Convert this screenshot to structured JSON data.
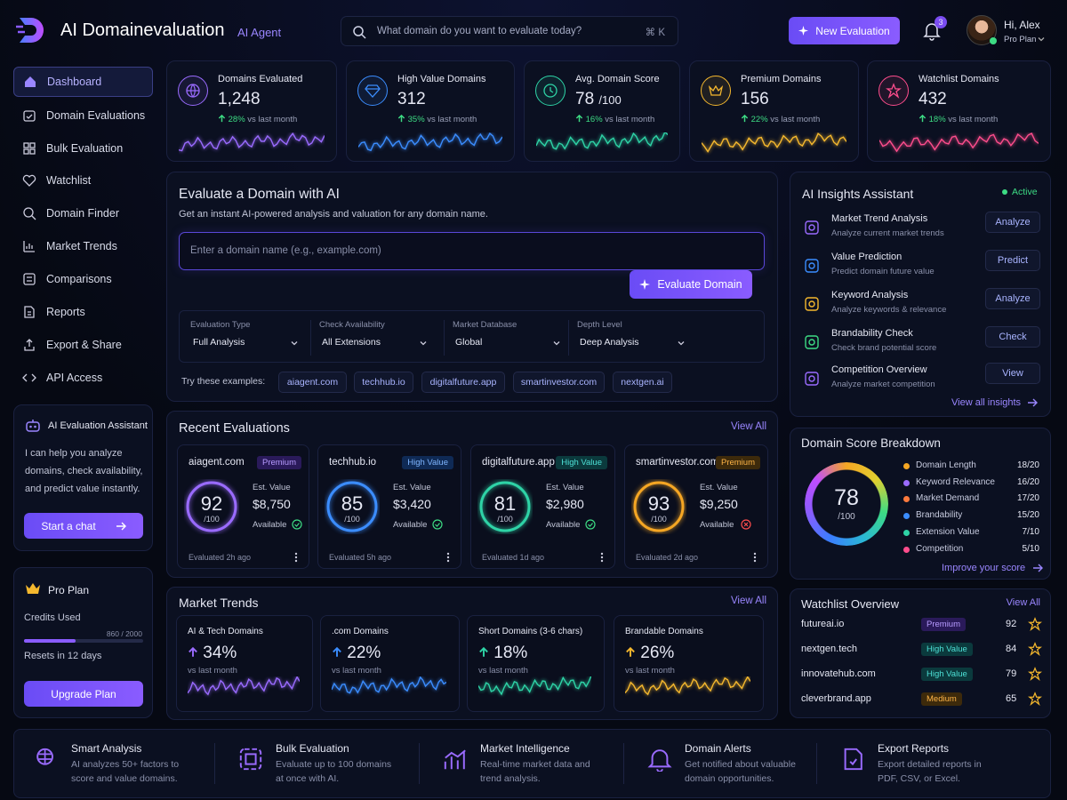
{
  "header": {
    "brand": "AI Domainevaluation",
    "tag": "AI Agent",
    "search_placeholder": "What domain do you want to evaluate today?",
    "shortcut": "⌘ K",
    "new_button": "New Evaluation",
    "notifications": "3",
    "greeting": "Hi, Alex",
    "plan": "Pro Plan"
  },
  "sidebar": {
    "nav": [
      "Dashboard",
      "Domain Evaluations",
      "Bulk Evaluation",
      "Watchlist",
      "Domain Finder",
      "Market Trends",
      "Comparisons",
      "Reports",
      "Export & Share",
      "API Access"
    ],
    "assistant": {
      "title": "AI Evaluation Assistant",
      "text": "I can help you analyze domains, check availability, and predict value instantly.",
      "button": "Start a chat"
    },
    "plan": {
      "title": "Pro Plan",
      "credits_label": "Credits Used",
      "credits": "860 / 2000",
      "resets": "Resets in 12 days",
      "button": "Upgrade Plan"
    }
  },
  "stats": [
    {
      "label": "Domains Evaluated",
      "value": "1,248",
      "change": "28%",
      "note": "vs last month"
    },
    {
      "label": "High Value Domains",
      "value": "312",
      "change": "35%",
      "note": "vs last month"
    },
    {
      "label": "Avg. Domain Score",
      "value": "78",
      "suffix": "/100",
      "change": "16%",
      "note": "vs last month"
    },
    {
      "label": "Premium Domains",
      "value": "156",
      "change": "22%",
      "note": "vs last month"
    },
    {
      "label": "Watchlist Domains",
      "value": "432",
      "change": "18%",
      "note": "vs last month"
    }
  ],
  "evaluate": {
    "title": "Evaluate a Domain with AI",
    "subtitle": "Get an instant AI-powered analysis and valuation for any domain name.",
    "input_placeholder": "Enter a domain name (e.g., example.com)",
    "button": "Evaluate Domain",
    "filters": [
      {
        "label": "Evaluation Type",
        "value": "Full Analysis"
      },
      {
        "label": "Check Availability",
        "value": "All Extensions"
      },
      {
        "label": "Market Database",
        "value": "Global"
      },
      {
        "label": "Depth Level",
        "value": "Deep Analysis"
      }
    ],
    "examples_label": "Try these examples:",
    "examples": [
      "aiagent.com",
      "techhub.io",
      "digitalfuture.app",
      "smartinvestor.com",
      "nextgen.ai"
    ]
  },
  "insights": {
    "title": "AI Insights Assistant",
    "status": "Active",
    "items": [
      {
        "title": "Market Trend Analysis",
        "desc": "Analyze current market trends",
        "action": "Analyze"
      },
      {
        "title": "Value Prediction",
        "desc": "Predict domain future value",
        "action": "Predict"
      },
      {
        "title": "Keyword Analysis",
        "desc": "Analyze keywords & relevance",
        "action": "Analyze"
      },
      {
        "title": "Brandability Check",
        "desc": "Check brand potential score",
        "action": "Check"
      },
      {
        "title": "Competition Overview",
        "desc": "Analyze market competition",
        "action": "View"
      }
    ],
    "link": "View all insights"
  },
  "recent": {
    "title": "Recent Evaluations",
    "link": "View All",
    "cards": [
      {
        "domain": "aiagent.com",
        "badge": "Premium",
        "score": "92",
        "score_max": "/100",
        "value_label": "Est. Value",
        "value": "$8,750",
        "status": "Available",
        "time": "Evaluated 2h ago"
      },
      {
        "domain": "techhub.io",
        "badge": "High Value",
        "score": "85",
        "score_max": "/100",
        "value_label": "Est. Value",
        "value": "$3,420",
        "status": "Available",
        "time": "Evaluated 5h ago"
      },
      {
        "domain": "digitalfuture.app",
        "badge": "High Value",
        "score": "81",
        "score_max": "/100",
        "value_label": "Est. Value",
        "value": "$2,980",
        "status": "Available",
        "time": "Evaluated 1d ago"
      },
      {
        "domain": "smartinvestor.com",
        "badge": "Premium",
        "score": "93",
        "score_max": "/100",
        "value_label": "Est. Value",
        "value": "$9,250",
        "status": "Available",
        "time": "Evaluated 2d ago"
      }
    ]
  },
  "breakdown": {
    "title": "Domain Score Breakdown",
    "score": "78",
    "score_max": "/100",
    "items": [
      {
        "label": "Domain Length",
        "value": "18/20"
      },
      {
        "label": "Keyword Relevance",
        "value": "16/20"
      },
      {
        "label": "Market Demand",
        "value": "17/20"
      },
      {
        "label": "Brandability",
        "value": "15/20"
      },
      {
        "label": "Extension Value",
        "value": "7/10"
      },
      {
        "label": "Competition",
        "value": "5/10"
      }
    ],
    "link": "Improve your score"
  },
  "trends": {
    "title": "Market Trends",
    "link": "View All",
    "cards": [
      {
        "title": "AI & Tech Domains",
        "value": "34%",
        "note": "vs last month"
      },
      {
        "title": ".com Domains",
        "value": "22%",
        "note": "vs last month"
      },
      {
        "title": "Short Domains (3-6 chars)",
        "value": "18%",
        "note": "vs last month"
      },
      {
        "title": "Brandable Domains",
        "value": "26%",
        "note": "vs last month"
      }
    ]
  },
  "watchlist": {
    "title": "Watchlist Overview",
    "link": "View All",
    "items": [
      {
        "domain": "futureai.io",
        "badge": "Premium",
        "score": "92"
      },
      {
        "domain": "nextgen.tech",
        "badge": "High Value",
        "score": "84"
      },
      {
        "domain": "innovatehub.com",
        "badge": "High Value",
        "score": "79"
      },
      {
        "domain": "cleverbrand.app",
        "badge": "Medium",
        "score": "65"
      }
    ]
  },
  "features": [
    {
      "title": "Smart Analysis",
      "desc": "AI analyzes 50+ factors to score and value domains."
    },
    {
      "title": "Bulk Evaluation",
      "desc": "Evaluate up to 100 domains at once with AI."
    },
    {
      "title": "Market Intelligence",
      "desc": "Real-time market data and trend analysis."
    },
    {
      "title": "Domain Alerts",
      "desc": "Get notified about valuable domain opportunities."
    },
    {
      "title": "Export Reports",
      "desc": "Export detailed reports in PDF, CSV, or Excel."
    }
  ]
}
